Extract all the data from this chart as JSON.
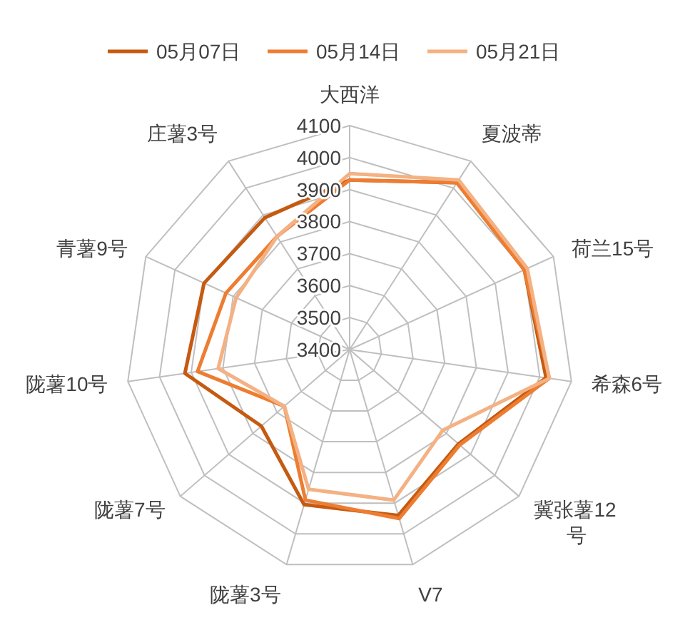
{
  "chart_data": {
    "type": "radar",
    "categories": [
      "大西洋",
      "夏波蒂",
      "荷兰15号",
      "希森6号",
      "冀张薯12号",
      "V7",
      "陇薯3号",
      "陇薯7号",
      "陇薯10号",
      "青薯9号",
      "庄薯3号"
    ],
    "series": [
      {
        "name": "05月07日",
        "color": "#c55a11",
        "values": [
          3930,
          4020,
          4000,
          4020,
          3850,
          3940,
          3905,
          3765,
          3920,
          3900,
          3890
        ]
      },
      {
        "name": "05月14日",
        "color": "#ed7d31",
        "values": [
          3930,
          4020,
          4000,
          4030,
          3855,
          3950,
          3890,
          3670,
          3880,
          3825,
          3820
        ]
      },
      {
        "name": "05月21日",
        "color": "#f4b183",
        "values": [
          3950,
          4030,
          4010,
          4030,
          3785,
          3890,
          3855,
          3670,
          3815,
          3790,
          3820
        ]
      }
    ],
    "ylim": [
      3400,
      4100
    ],
    "yticks": [
      3400,
      3500,
      3600,
      3700,
      3800,
      3900,
      4000,
      4100
    ],
    "grid": true,
    "legend": "top",
    "marker": "none"
  }
}
